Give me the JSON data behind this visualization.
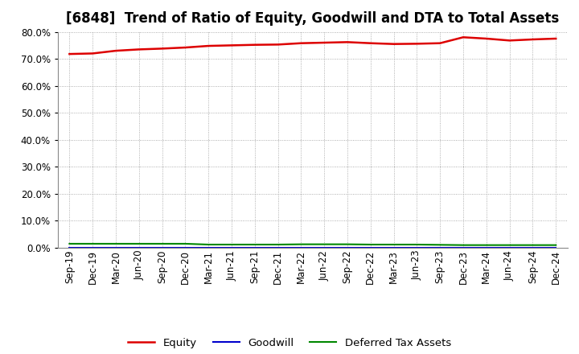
{
  "title": "[6848]  Trend of Ratio of Equity, Goodwill and DTA to Total Assets",
  "x_labels": [
    "Sep-19",
    "Dec-19",
    "Mar-20",
    "Jun-20",
    "Sep-20",
    "Dec-20",
    "Mar-21",
    "Jun-21",
    "Sep-21",
    "Dec-21",
    "Mar-22",
    "Jun-22",
    "Sep-22",
    "Dec-22",
    "Mar-23",
    "Jun-23",
    "Sep-23",
    "Dec-23",
    "Mar-24",
    "Jun-24",
    "Sep-24",
    "Dec-24"
  ],
  "equity": [
    71.8,
    72.0,
    73.0,
    73.5,
    73.8,
    74.2,
    74.8,
    75.0,
    75.2,
    75.3,
    75.8,
    76.0,
    76.2,
    75.8,
    75.5,
    75.6,
    75.8,
    78.0,
    77.5,
    76.8,
    77.2,
    77.5
  ],
  "goodwill": [
    0.05,
    0.05,
    0.05,
    0.05,
    0.05,
    0.05,
    0.05,
    0.05,
    0.05,
    0.05,
    0.05,
    0.05,
    0.05,
    0.05,
    0.05,
    0.05,
    0.05,
    0.05,
    0.05,
    0.05,
    0.05,
    0.05
  ],
  "dta": [
    1.5,
    1.5,
    1.5,
    1.5,
    1.5,
    1.5,
    1.2,
    1.2,
    1.2,
    1.2,
    1.3,
    1.3,
    1.3,
    1.2,
    1.2,
    1.2,
    1.1,
    1.0,
    1.0,
    1.0,
    1.0,
    1.0
  ],
  "equity_color": "#dd0000",
  "goodwill_color": "#0000cc",
  "dta_color": "#008800",
  "background_color": "#ffffff",
  "grid_color": "#999999",
  "ylim": [
    0.0,
    80.0
  ],
  "yticks": [
    0.0,
    10.0,
    20.0,
    30.0,
    40.0,
    50.0,
    60.0,
    70.0,
    80.0
  ],
  "legend_labels": [
    "Equity",
    "Goodwill",
    "Deferred Tax Assets"
  ],
  "title_fontsize": 12,
  "tick_fontsize": 8.5,
  "legend_fontsize": 9.5
}
